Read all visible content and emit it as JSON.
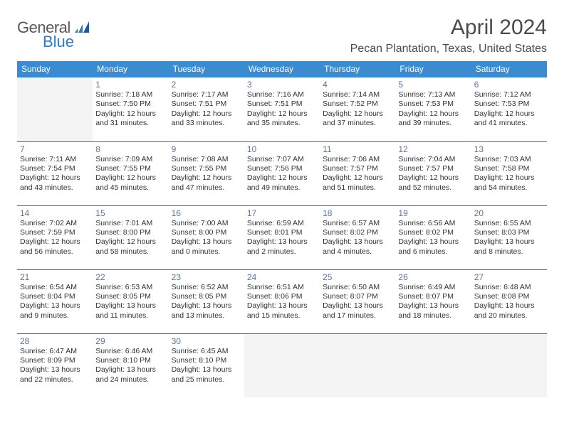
{
  "logo": {
    "text1": "General",
    "text2": "Blue"
  },
  "title": "April 2024",
  "location": "Pecan Plantation, Texas, United States",
  "colors": {
    "header_bg": "#3a8bd0",
    "header_fg": "#ffffff",
    "border": "#3a6b95",
    "daynum": "#5577aa",
    "empty_bg": "#f4f4f4",
    "logo_gray": "#575757",
    "logo_blue": "#2a7cc7"
  },
  "weekdays": [
    "Sunday",
    "Monday",
    "Tuesday",
    "Wednesday",
    "Thursday",
    "Friday",
    "Saturday"
  ],
  "weeks": [
    [
      null,
      {
        "n": "1",
        "sr": "7:18 AM",
        "ss": "7:50 PM",
        "dh": "12",
        "dm": "31"
      },
      {
        "n": "2",
        "sr": "7:17 AM",
        "ss": "7:51 PM",
        "dh": "12",
        "dm": "33"
      },
      {
        "n": "3",
        "sr": "7:16 AM",
        "ss": "7:51 PM",
        "dh": "12",
        "dm": "35"
      },
      {
        "n": "4",
        "sr": "7:14 AM",
        "ss": "7:52 PM",
        "dh": "12",
        "dm": "37"
      },
      {
        "n": "5",
        "sr": "7:13 AM",
        "ss": "7:53 PM",
        "dh": "12",
        "dm": "39"
      },
      {
        "n": "6",
        "sr": "7:12 AM",
        "ss": "7:53 PM",
        "dh": "12",
        "dm": "41"
      }
    ],
    [
      {
        "n": "7",
        "sr": "7:11 AM",
        "ss": "7:54 PM",
        "dh": "12",
        "dm": "43"
      },
      {
        "n": "8",
        "sr": "7:09 AM",
        "ss": "7:55 PM",
        "dh": "12",
        "dm": "45"
      },
      {
        "n": "9",
        "sr": "7:08 AM",
        "ss": "7:55 PM",
        "dh": "12",
        "dm": "47"
      },
      {
        "n": "10",
        "sr": "7:07 AM",
        "ss": "7:56 PM",
        "dh": "12",
        "dm": "49"
      },
      {
        "n": "11",
        "sr": "7:06 AM",
        "ss": "7:57 PM",
        "dh": "12",
        "dm": "51"
      },
      {
        "n": "12",
        "sr": "7:04 AM",
        "ss": "7:57 PM",
        "dh": "12",
        "dm": "52"
      },
      {
        "n": "13",
        "sr": "7:03 AM",
        "ss": "7:58 PM",
        "dh": "12",
        "dm": "54"
      }
    ],
    [
      {
        "n": "14",
        "sr": "7:02 AM",
        "ss": "7:59 PM",
        "dh": "12",
        "dm": "56"
      },
      {
        "n": "15",
        "sr": "7:01 AM",
        "ss": "8:00 PM",
        "dh": "12",
        "dm": "58"
      },
      {
        "n": "16",
        "sr": "7:00 AM",
        "ss": "8:00 PM",
        "dh": "13",
        "dm": "0"
      },
      {
        "n": "17",
        "sr": "6:59 AM",
        "ss": "8:01 PM",
        "dh": "13",
        "dm": "2"
      },
      {
        "n": "18",
        "sr": "6:57 AM",
        "ss": "8:02 PM",
        "dh": "13",
        "dm": "4"
      },
      {
        "n": "19",
        "sr": "6:56 AM",
        "ss": "8:02 PM",
        "dh": "13",
        "dm": "6"
      },
      {
        "n": "20",
        "sr": "6:55 AM",
        "ss": "8:03 PM",
        "dh": "13",
        "dm": "8"
      }
    ],
    [
      {
        "n": "21",
        "sr": "6:54 AM",
        "ss": "8:04 PM",
        "dh": "13",
        "dm": "9"
      },
      {
        "n": "22",
        "sr": "6:53 AM",
        "ss": "8:05 PM",
        "dh": "13",
        "dm": "11"
      },
      {
        "n": "23",
        "sr": "6:52 AM",
        "ss": "8:05 PM",
        "dh": "13",
        "dm": "13"
      },
      {
        "n": "24",
        "sr": "6:51 AM",
        "ss": "8:06 PM",
        "dh": "13",
        "dm": "15"
      },
      {
        "n": "25",
        "sr": "6:50 AM",
        "ss": "8:07 PM",
        "dh": "13",
        "dm": "17"
      },
      {
        "n": "26",
        "sr": "6:49 AM",
        "ss": "8:07 PM",
        "dh": "13",
        "dm": "18"
      },
      {
        "n": "27",
        "sr": "6:48 AM",
        "ss": "8:08 PM",
        "dh": "13",
        "dm": "20"
      }
    ],
    [
      {
        "n": "28",
        "sr": "6:47 AM",
        "ss": "8:09 PM",
        "dh": "13",
        "dm": "22"
      },
      {
        "n": "29",
        "sr": "6:46 AM",
        "ss": "8:10 PM",
        "dh": "13",
        "dm": "24"
      },
      {
        "n": "30",
        "sr": "6:45 AM",
        "ss": "8:10 PM",
        "dh": "13",
        "dm": "25"
      },
      null,
      null,
      null,
      null
    ]
  ]
}
